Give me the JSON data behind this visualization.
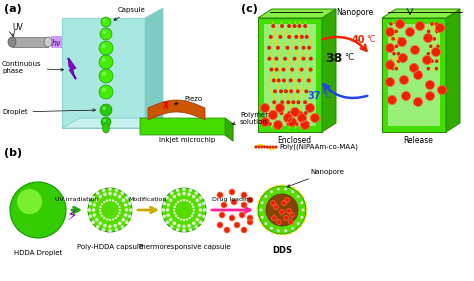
{
  "bg_color": "#ffffff",
  "panel_a": "(a)",
  "panel_b": "(b)",
  "panel_c": "(c)",
  "teal_front": "#a8e8e0",
  "teal_right": "#7cccc4",
  "teal_top": "#c8f0ec",
  "green_bright": "#44dd00",
  "green_mid": "#33bb00",
  "green_light": "#88ee44",
  "green_dark": "#228800",
  "green_sphere": "#33cc00",
  "green_texture": "#55dd22",
  "red_dot": "#ee2200",
  "red_ring": "#ff6644",
  "orange_piezo": "#dd6600",
  "gray_lamp": "#999999",
  "purple_beam": "#cc88ff",
  "purple_bolt": "#8800cc",
  "yellow_arrow": "#ddbb00",
  "pink_arrow": "#ff4499",
  "poly_chain_yellow": "#ffcc00",
  "poly_chain_red": "#dd3300",
  "temp40_color": "#ee2200",
  "temp37_color": "#2244ee",
  "temp38_color": "#111111",
  "uv_text": "UV",
  "hv_text": "hν",
  "capsule_text": "Capsule",
  "cont_phase_text": "Continuous\nphase",
  "droplet_text": "Droplet",
  "piezo_text": "Piezo",
  "inkjet_text": "Inkjet microchip",
  "polymer_text": "Polymer\nsolution",
  "nanopore_text": "Nanopore",
  "enclosed_text": "Enclosed",
  "release_text": "Release",
  "poly_legend_text": "Poly((NIPAAm-co-MAA)",
  "hdda_text": "HDDA Droplet",
  "poly_hdda_text": "Poly-HDDA capsule",
  "thermo_text": "Thermoresponsive capsule",
  "dds_text": "DDS",
  "uv_irr_text": "UV irradiation",
  "mod_text": "Modification",
  "drug_text": "Drug loading",
  "nano2_text": "Nanopore"
}
